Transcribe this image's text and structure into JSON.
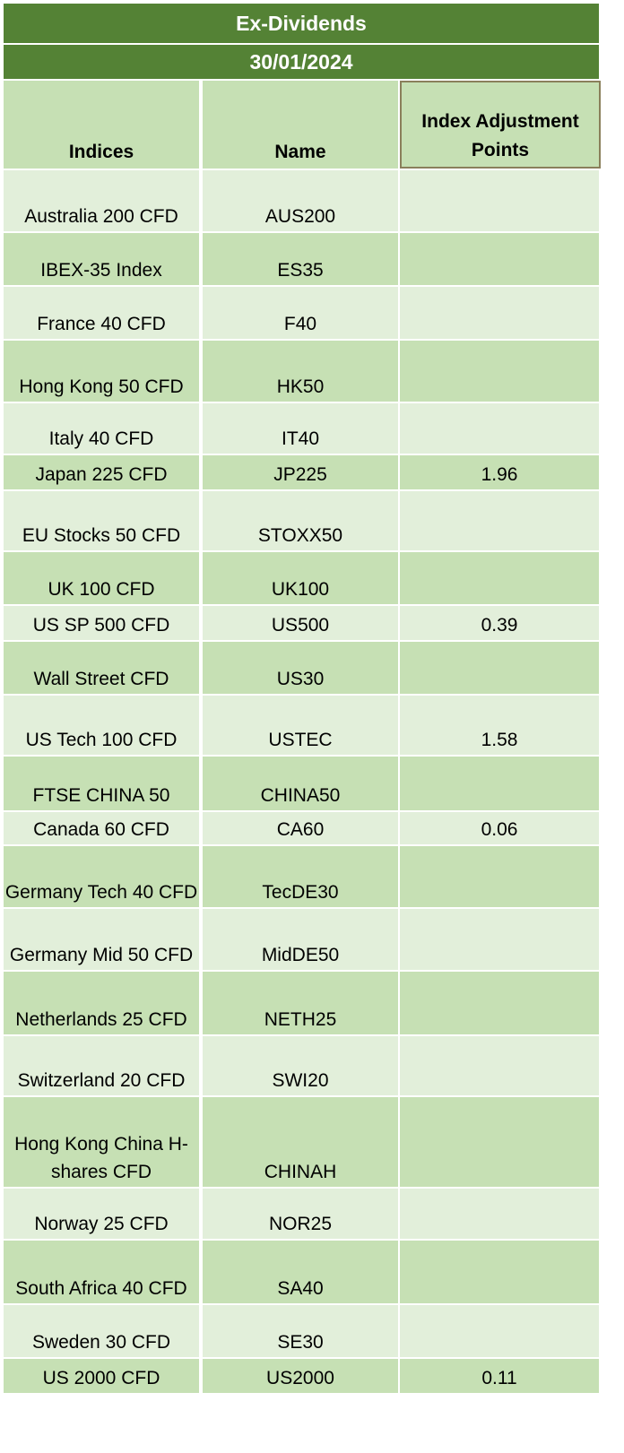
{
  "title": "Ex-Dividends",
  "date": "30/01/2024",
  "headers": {
    "indices": "Indices",
    "name": "Name",
    "adjustment": "Index Adjustment Points"
  },
  "rows": [
    {
      "index": "Australia 200 CFD",
      "name": "AUS200",
      "points": ""
    },
    {
      "index": "IBEX-35 Index",
      "name": "ES35",
      "points": ""
    },
    {
      "index": "France 40 CFD",
      "name": "F40",
      "points": ""
    },
    {
      "index": "Hong Kong 50 CFD",
      "name": "HK50",
      "points": ""
    },
    {
      "index": "Italy 40 CFD",
      "name": "IT40",
      "points": ""
    },
    {
      "index": "Japan 225 CFD",
      "name": "JP225",
      "points": "1.96"
    },
    {
      "index": "EU Stocks 50 CFD",
      "name": "STOXX50",
      "points": ""
    },
    {
      "index": "UK 100 CFD",
      "name": "UK100",
      "points": ""
    },
    {
      "index": "US SP 500 CFD",
      "name": "US500",
      "points": "0.39"
    },
    {
      "index": "Wall Street CFD",
      "name": "US30",
      "points": ""
    },
    {
      "index": "US Tech 100 CFD",
      "name": "USTEC",
      "points": "1.58"
    },
    {
      "index": "FTSE CHINA 50",
      "name": "CHINA50",
      "points": ""
    },
    {
      "index": "Canada 60 CFD",
      "name": "CA60",
      "points": "0.06"
    },
    {
      "index": "Germany Tech 40 CFD",
      "name": "TecDE30",
      "points": ""
    },
    {
      "index": "Germany Mid 50 CFD",
      "name": "MidDE50",
      "points": ""
    },
    {
      "index": "Netherlands 25 CFD",
      "name": "NETH25",
      "points": ""
    },
    {
      "index": "Switzerland 20 CFD",
      "name": "SWI20",
      "points": ""
    },
    {
      "index": "Hong Kong China H-shares CFD",
      "name": "CHINAH",
      "points": ""
    },
    {
      "index": "Norway 25 CFD",
      "name": "NOR25",
      "points": ""
    },
    {
      "index": "South Africa 40 CFD",
      "name": "SA40",
      "points": ""
    },
    {
      "index": "Sweden 30 CFD",
      "name": "SE30",
      "points": ""
    },
    {
      "index": "US 2000 CFD",
      "name": "US2000",
      "points": "0.11"
    }
  ],
  "colors": {
    "banner": "#548235",
    "row_light": "#e2efda",
    "row_dark": "#c6e0b4"
  }
}
